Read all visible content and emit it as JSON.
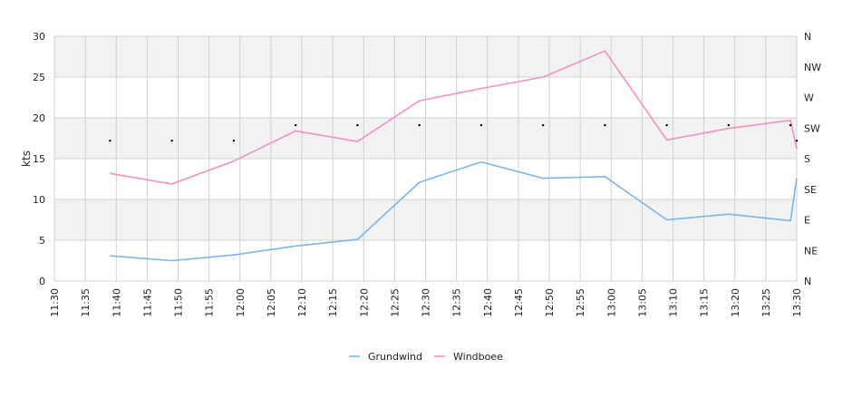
{
  "chart_data": {
    "type": "line",
    "ylabel": "kts",
    "ylim": [
      0,
      30
    ],
    "y_ticks": [
      "0",
      "5",
      "10",
      "15",
      "20",
      "25",
      "30"
    ],
    "y2_ticks": [
      "N",
      "NE",
      "E",
      "SE",
      "S",
      "SW",
      "W",
      "NW",
      "N"
    ],
    "x_ticks": [
      "11:30",
      "11:35",
      "11:40",
      "11:45",
      "11:50",
      "11:55",
      "12:00",
      "12:05",
      "12:10",
      "12:15",
      "12:20",
      "12:25",
      "12:30",
      "12:35",
      "12:40",
      "12:45",
      "12:50",
      "12:55",
      "13:00",
      "13:05",
      "13:10",
      "13:15",
      "13:20",
      "13:25",
      "13:30"
    ],
    "x_range": [
      "11:30",
      "13:30"
    ],
    "grid": true,
    "banded_background": true,
    "legend_position": "bottom",
    "series": [
      {
        "name": "Grundwind",
        "color": "#7cb5ec",
        "points": [
          {
            "x": "11:39",
            "y": 3.1
          },
          {
            "x": "11:49",
            "y": 2.5
          },
          {
            "x": "11:59",
            "y": 3.2
          },
          {
            "x": "12:09",
            "y": 4.3
          },
          {
            "x": "12:19",
            "y": 5.1
          },
          {
            "x": "12:29",
            "y": 12.1
          },
          {
            "x": "12:39",
            "y": 14.6
          },
          {
            "x": "12:49",
            "y": 12.6
          },
          {
            "x": "12:59",
            "y": 12.8
          },
          {
            "x": "13:09",
            "y": 7.5
          },
          {
            "x": "13:19",
            "y": 8.2
          },
          {
            "x": "13:29",
            "y": 7.4
          },
          {
            "x": "13:30",
            "y": 12.6
          }
        ]
      },
      {
        "name": "Windboee",
        "color": "#f191c3",
        "points": [
          {
            "x": "11:39",
            "y": 13.2
          },
          {
            "x": "11:49",
            "y": 11.9
          },
          {
            "x": "11:59",
            "y": 14.7
          },
          {
            "x": "12:09",
            "y": 18.4
          },
          {
            "x": "12:19",
            "y": 17.1
          },
          {
            "x": "12:29",
            "y": 22.1
          },
          {
            "x": "12:39",
            "y": 23.6
          },
          {
            "x": "12:49",
            "y": 25.0
          },
          {
            "x": "12:59",
            "y": 28.2
          },
          {
            "x": "13:09",
            "y": 17.3
          },
          {
            "x": "13:19",
            "y": 18.7
          },
          {
            "x": "13:29",
            "y": 19.7
          },
          {
            "x": "13:30",
            "y": 16.2
          }
        ]
      }
    ],
    "direction_markers": [
      {
        "x": "11:39",
        "y": 17.2
      },
      {
        "x": "11:49",
        "y": 17.2
      },
      {
        "x": "11:59",
        "y": 17.2
      },
      {
        "x": "12:09",
        "y": 19.1
      },
      {
        "x": "12:19",
        "y": 19.1
      },
      {
        "x": "12:29",
        "y": 19.1
      },
      {
        "x": "12:39",
        "y": 19.1
      },
      {
        "x": "12:49",
        "y": 19.1
      },
      {
        "x": "12:59",
        "y": 19.1
      },
      {
        "x": "13:09",
        "y": 19.1
      },
      {
        "x": "13:19",
        "y": 19.1
      },
      {
        "x": "13:29",
        "y": 19.1
      },
      {
        "x": "13:30",
        "y": 17.2
      }
    ],
    "colors": {
      "band": "#f2f2f2",
      "grid": "#d0d0d0",
      "axis_text": "#222222",
      "marker": "#000000"
    }
  }
}
